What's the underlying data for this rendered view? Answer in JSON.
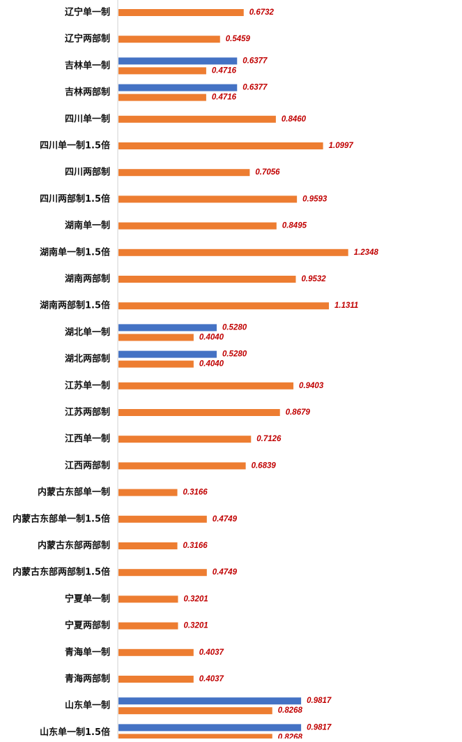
{
  "colors": {
    "primary_bar": "#ed7d31",
    "secondary_bar": "#4472c4",
    "value_label": "#c00000",
    "axis": "#d0d0d0",
    "label_text": "#111111"
  },
  "chart_data": {
    "type": "bar",
    "orientation": "horizontal",
    "title": "",
    "xlabel": "",
    "ylabel": "",
    "xlim": [
      0,
      1.3
    ],
    "grid": false,
    "legend": "none",
    "categories": [
      "辽宁单一制",
      "辽宁两部制",
      "吉林单一制",
      "吉林两部制",
      "四川单一制",
      "四川单一制1.5倍",
      "四川两部制",
      "四川两部制1.5倍",
      "湖南单一制",
      "湖南单一制1.5倍",
      "湖南两部制",
      "湖南两部制1.5倍",
      "湖北单一制",
      "湖北两部制",
      "江苏单一制",
      "江苏两部制",
      "江西单一制",
      "江西两部制",
      "内蒙古东部单一制",
      "内蒙古东部单一制1.5倍",
      "内蒙古东部两部制",
      "内蒙古东部两部制1.5倍",
      "宁夏单一制",
      "宁夏两部制",
      "青海单一制",
      "青海两部制",
      "山东单一制",
      "山东单一制1.5倍"
    ],
    "series": [
      {
        "color": "#ed7d31",
        "values": [
          0.6732,
          0.5459,
          0.4716,
          0.4716,
          0.846,
          1.0997,
          0.7056,
          0.9593,
          0.8495,
          1.2348,
          0.9532,
          1.1311,
          0.404,
          0.404,
          0.9403,
          0.8679,
          0.7126,
          0.6839,
          0.3166,
          0.4749,
          0.3166,
          0.4749,
          0.3201,
          0.3201,
          0.4037,
          0.4037,
          0.8268,
          0.8268
        ],
        "labels": [
          "0.6732",
          "0.5459",
          "0.4716",
          "0.4716",
          "0.8460",
          "1.0997",
          "0.7056",
          "0.9593",
          "0.8495",
          "1.2348",
          "0.9532",
          "1.1311",
          "0.4040",
          "0.4040",
          "0.9403",
          "0.8679",
          "0.7126",
          "0.6839",
          "0.3166",
          "0.4749",
          "0.3166",
          "0.4749",
          "0.3201",
          "0.3201",
          "0.4037",
          "0.4037",
          "0.8268",
          "0.8268"
        ]
      },
      {
        "color": "#4472c4",
        "values": [
          null,
          null,
          0.6377,
          0.6377,
          null,
          null,
          null,
          null,
          null,
          null,
          null,
          null,
          0.528,
          0.528,
          null,
          null,
          null,
          null,
          null,
          null,
          null,
          null,
          null,
          null,
          null,
          null,
          0.9817,
          0.9817
        ],
        "labels": [
          null,
          null,
          "0.6377",
          "0.6377",
          null,
          null,
          null,
          null,
          null,
          null,
          null,
          null,
          "0.5280",
          "0.5280",
          null,
          null,
          null,
          null,
          null,
          null,
          null,
          null,
          null,
          null,
          null,
          null,
          "0.9817",
          "0.9817"
        ]
      }
    ]
  }
}
